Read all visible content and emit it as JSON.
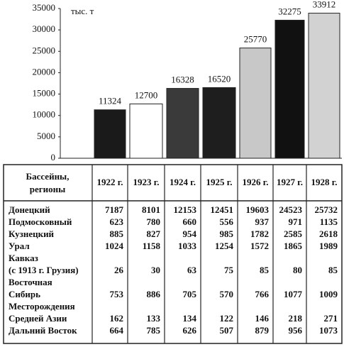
{
  "chart_data": {
    "type": "bar",
    "y_unit": "тыс. т",
    "categories": [
      null,
      null,
      null,
      null,
      null,
      null,
      null
    ],
    "values": [
      11324,
      12700,
      16328,
      16520,
      25770,
      32275,
      33912
    ],
    "colors": [
      "#1a1a1a",
      "#ffffff",
      "#3a3a3a",
      "#1e1e1e",
      "#c8c8c8",
      "#111111",
      "#d2d2d2"
    ],
    "ylim": [
      0,
      35000
    ],
    "yticks": [
      0,
      5000,
      10000,
      15000,
      20000,
      25000,
      30000,
      35000
    ]
  },
  "table": {
    "corner": [
      "Бассейны,",
      "регионы"
    ],
    "columns": [
      "1922 г.",
      "1923 г.",
      "1924 г.",
      "1925 г.",
      "1926 г.",
      "1927 г.",
      "1928 г."
    ],
    "rows": [
      {
        "label": [
          "Донецкий"
        ],
        "values": [
          7187,
          8101,
          12153,
          12451,
          19603,
          24523,
          25732
        ]
      },
      {
        "label": [
          "Подмосковный"
        ],
        "values": [
          623,
          780,
          660,
          556,
          937,
          971,
          1135
        ]
      },
      {
        "label": [
          "Кузнецкий"
        ],
        "values": [
          885,
          827,
          954,
          985,
          1782,
          2585,
          2618
        ]
      },
      {
        "label": [
          "Урал"
        ],
        "values": [
          1024,
          1158,
          1033,
          1254,
          1572,
          1865,
          1989
        ]
      },
      {
        "label": [
          "Кавказ",
          "(с 1913 г. Грузия)"
        ],
        "values": [
          26,
          30,
          63,
          75,
          85,
          80,
          85
        ]
      },
      {
        "label": [
          "Восточная",
          "Сибирь"
        ],
        "values": [
          753,
          886,
          705,
          570,
          766,
          1077,
          1009
        ]
      },
      {
        "label": [
          "Месторождения",
          "Средней Азии"
        ],
        "values": [
          162,
          133,
          134,
          122,
          146,
          218,
          271
        ]
      },
      {
        "label": [
          "Дальний Восток"
        ],
        "values": [
          664,
          785,
          626,
          507,
          879,
          956,
          1073
        ]
      }
    ]
  }
}
